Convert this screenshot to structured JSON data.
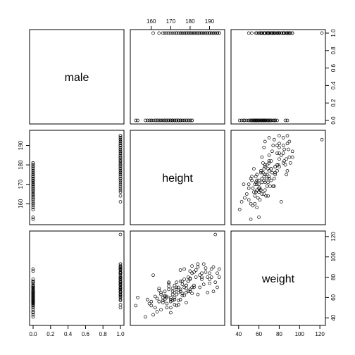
{
  "chart_data": {
    "type": "scatter",
    "title": "",
    "variables": [
      "male",
      "height",
      "weight"
    ],
    "axes": {
      "male": {
        "lim": [
          0,
          1
        ],
        "ticks": [
          0,
          0.2,
          0.4,
          0.6,
          0.8,
          1
        ],
        "tick_labels": [
          "0.0",
          "0.2",
          "0.4",
          "0.6",
          "0.8",
          "1.0"
        ]
      },
      "height": {
        "lim": [
          151,
          196
        ],
        "ticks": [
          160,
          170,
          180,
          190
        ],
        "tick_labels": [
          "160",
          "170",
          "180",
          "190"
        ]
      },
      "weight": {
        "lim": [
          36,
          122
        ],
        "ticks": [
          40,
          60,
          80,
          100,
          120
        ],
        "tick_labels": [
          "40",
          "60",
          "80",
          "100",
          "120"
        ]
      }
    },
    "data": {
      "male": [
        0,
        0,
        0,
        0,
        0,
        0,
        0,
        0,
        0,
        0,
        0,
        0,
        0,
        0,
        0,
        0,
        0,
        0,
        0,
        0,
        0,
        0,
        0,
        0,
        0,
        0,
        0,
        0,
        0,
        0,
        0,
        0,
        0,
        0,
        0,
        0,
        0,
        0,
        0,
        0,
        0,
        0,
        0,
        0,
        0,
        0,
        0,
        0,
        0,
        0,
        0,
        0,
        0,
        0,
        0,
        0,
        0,
        0,
        0,
        0,
        1,
        1,
        1,
        1,
        1,
        1,
        1,
        1,
        1,
        1,
        1,
        1,
        1,
        1,
        1,
        1,
        1,
        1,
        1,
        1,
        1,
        1,
        1,
        1,
        1,
        1,
        1,
        1,
        1,
        1,
        1,
        1,
        1,
        1,
        1,
        1,
        1,
        1,
        1,
        1,
        1,
        1,
        1,
        1,
        1,
        1,
        1,
        1,
        1,
        1,
        1,
        1,
        1,
        1,
        1,
        1,
        1,
        1,
        1,
        1
      ],
      "height": [
        152,
        153,
        157,
        158,
        159,
        160,
        160,
        161,
        162,
        162,
        163,
        163,
        164,
        164,
        165,
        165,
        165,
        166,
        166,
        167,
        167,
        167,
        168,
        168,
        168,
        169,
        169,
        169,
        170,
        170,
        170,
        170,
        171,
        171,
        171,
        172,
        172,
        172,
        172,
        173,
        173,
        173,
        174,
        174,
        174,
        175,
        175,
        175,
        176,
        176,
        177,
        177,
        178,
        178,
        179,
        179,
        180,
        180,
        181,
        181,
        161,
        164,
        166,
        167,
        168,
        169,
        170,
        171,
        172,
        173,
        173,
        174,
        175,
        175,
        176,
        176,
        177,
        177,
        178,
        178,
        178,
        179,
        179,
        180,
        180,
        180,
        181,
        181,
        182,
        182,
        182,
        183,
        183,
        184,
        184,
        184,
        185,
        185,
        186,
        186,
        186,
        187,
        187,
        188,
        188,
        189,
        189,
        190,
        190,
        190,
        191,
        191,
        192,
        192,
        193,
        193,
        194,
        194,
        195,
        195
      ],
      "weight": [
        52,
        60,
        41,
        58,
        54,
        56,
        52,
        43,
        50,
        61,
        59,
        46,
        56,
        67,
        48,
        65,
        63,
        57,
        55,
        62,
        66,
        58,
        54,
        60,
        61,
        71,
        74,
        68,
        45,
        50,
        56,
        60,
        57,
        69,
        66,
        65,
        72,
        58,
        60,
        52,
        63,
        75,
        70,
        65,
        53,
        68,
        76,
        58,
        62,
        64,
        70,
        88,
        72,
        55,
        66,
        76,
        78,
        86,
        64,
        70,
        82,
        69,
        60,
        61,
        50,
        75,
        58,
        63,
        53,
        68,
        70,
        57,
        87,
        66,
        73,
        76,
        78,
        62,
        65,
        69,
        72,
        76,
        80,
        66,
        79,
        68,
        91,
        84,
        70,
        85,
        72,
        80,
        87,
        90,
        93,
        63,
        82,
        70,
        84,
        80,
        78,
        73,
        93,
        85,
        89,
        80,
        65,
        78,
        74,
        84,
        80,
        88,
        66,
        90,
        122,
        75,
        70,
        84,
        80,
        88
      ]
    }
  }
}
